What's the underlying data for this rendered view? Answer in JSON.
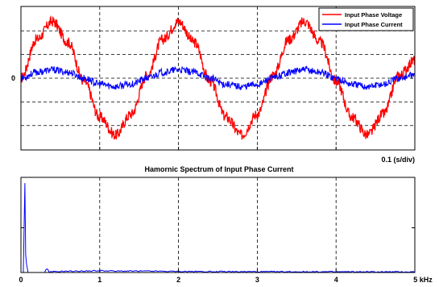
{
  "chart_data": [
    {
      "type": "line",
      "title": "",
      "xlabel": "0.1 (s/div)",
      "ylabel": "",
      "x_unit": "s",
      "x_range": [
        0,
        0.5
      ],
      "x_ticks": [
        0,
        0.1,
        0.2,
        0.3,
        0.4,
        0.5
      ],
      "y_range": [
        -1.2,
        1.2
      ],
      "y_ticks": [
        0
      ],
      "y_tick_labels": [
        "0"
      ],
      "grid": "on",
      "legend_position": "top-right",
      "series": [
        {
          "name": "Input Phase Voltage",
          "color": "#ff0000",
          "x": [
            0,
            0.02,
            0.04,
            0.06,
            0.08,
            0.1,
            0.12,
            0.14,
            0.16,
            0.18,
            0.2,
            0.22,
            0.24,
            0.26,
            0.28,
            0.3,
            0.32,
            0.34,
            0.36,
            0.38,
            0.4,
            0.42,
            0.44,
            0.46,
            0.48,
            0.5
          ],
          "y": [
            0,
            0.65,
            0.95,
            0.6,
            -0.05,
            -0.65,
            -0.95,
            -0.6,
            0.05,
            0.65,
            0.95,
            0.6,
            -0.05,
            -0.65,
            -0.95,
            -0.6,
            0.05,
            0.65,
            0.95,
            0.6,
            -0.05,
            -0.65,
            -0.95,
            -0.6,
            0.05,
            0.3
          ]
        },
        {
          "name": "Input Phase Current",
          "color": "#0000ff",
          "x": [
            0,
            0.02,
            0.04,
            0.06,
            0.08,
            0.1,
            0.12,
            0.14,
            0.16,
            0.18,
            0.2,
            0.22,
            0.24,
            0.26,
            0.28,
            0.3,
            0.32,
            0.34,
            0.36,
            0.38,
            0.4,
            0.42,
            0.44,
            0.46,
            0.48,
            0.5
          ],
          "y": [
            0,
            0.1,
            0.14,
            0.1,
            0,
            -0.1,
            -0.14,
            -0.1,
            0,
            0.1,
            0.14,
            0.1,
            0,
            -0.1,
            -0.14,
            -0.1,
            0,
            0.1,
            0.14,
            0.1,
            0,
            -0.1,
            -0.14,
            -0.1,
            0,
            0.05
          ]
        }
      ]
    },
    {
      "type": "line",
      "title": "Hamornic Spectrum of Input Phase Current",
      "xlabel": "",
      "ylabel": "",
      "x_unit": "kHz",
      "x_range": [
        0,
        5
      ],
      "x_ticks": [
        0,
        1,
        2,
        3,
        4,
        5
      ],
      "x_tick_labels": [
        "0",
        "1",
        "2",
        "3",
        "4",
        "5 kHz"
      ],
      "y_range": [
        0,
        1
      ],
      "grid": "on",
      "series": [
        {
          "name": "",
          "color": "#0000ff",
          "x": [
            0,
            0.03,
            0.05,
            0.06,
            0.07,
            0.09,
            0.3,
            0.33,
            0.36,
            0.5,
            0.8,
            1.0,
            1.2,
            1.5,
            2.0,
            2.5,
            3.0,
            4.0,
            5.0
          ],
          "y": [
            0,
            0,
            1.0,
            0.2,
            0.1,
            0,
            0,
            0.04,
            0,
            0.008,
            0.01,
            0.015,
            0.01,
            0.01,
            0.006,
            0.004,
            0.003,
            0.002,
            0.001
          ]
        }
      ]
    }
  ]
}
